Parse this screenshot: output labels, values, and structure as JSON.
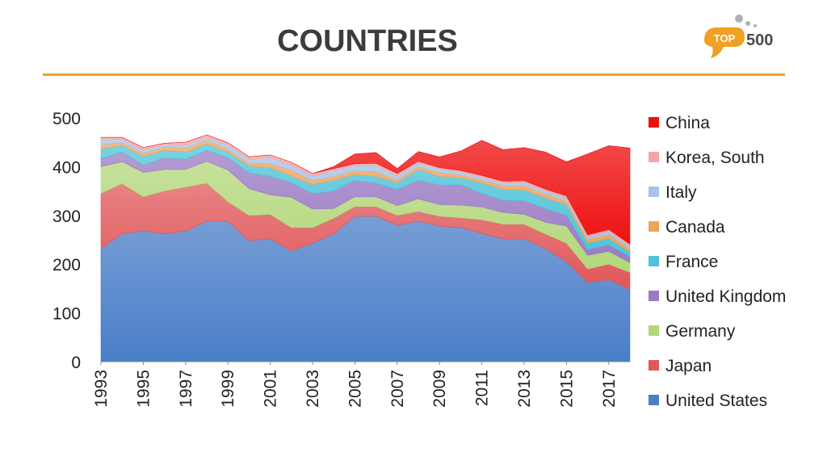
{
  "header": {
    "title": "COUNTRIES",
    "logo_badge": "TOP",
    "logo_number": "500"
  },
  "colors": {
    "accent": "#f0a022",
    "title": "#3c3c3c"
  },
  "chart_data": {
    "type": "area",
    "title": "",
    "xlabel": "",
    "ylabel": "",
    "ylim": [
      0,
      500
    ],
    "xlim": [
      1993,
      2018
    ],
    "y_ticks": [
      "0",
      "100",
      "200",
      "300",
      "400",
      "500"
    ],
    "x_ticks": [
      "1993",
      "1995",
      "1997",
      "1999",
      "2001",
      "2003",
      "2005",
      "2007",
      "2009",
      "2011",
      "2013",
      "2015",
      "2017"
    ],
    "legend_position": "right",
    "x": [
      1993,
      1994,
      1995,
      1996,
      1997,
      1998,
      1999,
      2000,
      2001,
      2002,
      2003,
      2004,
      2005,
      2006,
      2007,
      2008,
      2009,
      2010,
      2011,
      2012,
      2013,
      2014,
      2015,
      2016,
      2017,
      2018
    ],
    "series": [
      {
        "name": "United States",
        "color": "#4a7ec8",
        "values": [
          232,
          262,
          268,
          262,
          268,
          288,
          288,
          248,
          252,
          227,
          243,
          262,
          298,
          298,
          280,
          288,
          278,
          275,
          263,
          252,
          252,
          232,
          205,
          162,
          168,
          148
        ]
      },
      {
        "name": "Japan",
        "color": "#e0585a",
        "values": [
          113,
          103,
          70,
          88,
          90,
          78,
          40,
          52,
          50,
          48,
          32,
          32,
          20,
          20,
          20,
          20,
          20,
          20,
          28,
          30,
          30,
          30,
          38,
          28,
          32,
          35
        ]
      },
      {
        "name": "Germany",
        "color": "#b2d77a",
        "values": [
          55,
          45,
          50,
          44,
          36,
          45,
          65,
          55,
          40,
          62,
          38,
          20,
          20,
          20,
          20,
          26,
          24,
          26,
          26,
          24,
          20,
          24,
          35,
          28,
          26,
          20
        ]
      },
      {
        "name": "United Kingdom",
        "color": "#9b7bc4",
        "values": [
          16,
          20,
          15,
          24,
          21,
          22,
          25,
          32,
          38,
          30,
          32,
          36,
          34,
          28,
          33,
          38,
          40,
          42,
          28,
          25,
          28,
          28,
          22,
          12,
          14,
          12
        ]
      },
      {
        "name": "France",
        "color": "#4fc3d8",
        "values": [
          20,
          14,
          18,
          16,
          15,
          13,
          12,
          14,
          18,
          14,
          18,
          22,
          12,
          14,
          14,
          22,
          18,
          14,
          22,
          22,
          22,
          22,
          22,
          14,
          13,
          10
        ]
      },
      {
        "name": "Canada",
        "color": "#f0a35a",
        "values": [
          8,
          6,
          7,
          6,
          8,
          8,
          6,
          6,
          8,
          12,
          8,
          8,
          8,
          10,
          6,
          6,
          8,
          6,
          6,
          8,
          9,
          8,
          7,
          7,
          8,
          7
        ]
      },
      {
        "name": "Italy",
        "color": "#a6c4e8",
        "values": [
          10,
          6,
          6,
          4,
          6,
          5,
          8,
          8,
          12,
          10,
          9,
          12,
          10,
          12,
          8,
          7,
          7,
          6,
          5,
          5,
          6,
          6,
          6,
          5,
          6,
          5
        ]
      },
      {
        "name": "Korea, South",
        "color": "#f2a6a6",
        "values": [
          6,
          4,
          5,
          4,
          6,
          6,
          5,
          5,
          6,
          6,
          6,
          4,
          4,
          5,
          5,
          4,
          3,
          3,
          4,
          4,
          4,
          4,
          5,
          4,
          4,
          4
        ]
      },
      {
        "name": "China",
        "color": "#ee1111",
        "values": [
          0,
          0,
          0,
          0,
          0,
          0,
          0,
          0,
          0,
          0,
          0,
          4,
          20,
          22,
          10,
          20,
          22,
          40,
          72,
          65,
          68,
          76,
          70,
          166,
          172,
          197
        ]
      }
    ]
  }
}
